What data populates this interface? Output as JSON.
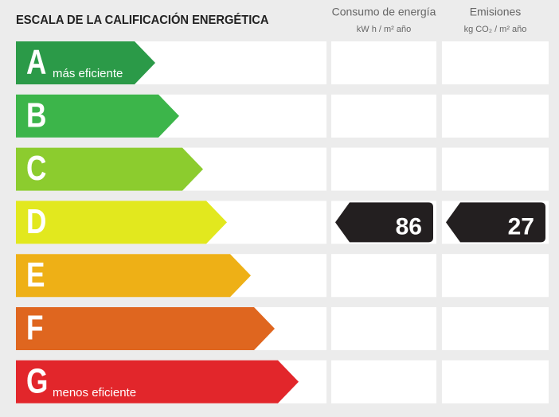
{
  "header": {
    "title": "ESCALA DE LA CALIFICACIÓN ENERGÉTICA",
    "columns": [
      {
        "title": "Consumo de energía",
        "unit": "kW h / m² año"
      },
      {
        "title": "Emisiones",
        "unit": "kg CO₂ / m² año"
      }
    ]
  },
  "rows": [
    {
      "letter": "A",
      "note": "más eficiente",
      "color": "#2b9a48"
    },
    {
      "letter": "B",
      "color": "#3cb54a"
    },
    {
      "letter": "C",
      "color": "#8ccc2e"
    },
    {
      "letter": "D",
      "color": "#e2e81e"
    },
    {
      "letter": "E",
      "color": "#eeb016"
    },
    {
      "letter": "F",
      "color": "#df661f"
    },
    {
      "letter": "G",
      "note": "menos eficiente",
      "color": "#e2262b"
    }
  ],
  "rating": {
    "row": 3,
    "values": [
      86,
      27
    ]
  }
}
